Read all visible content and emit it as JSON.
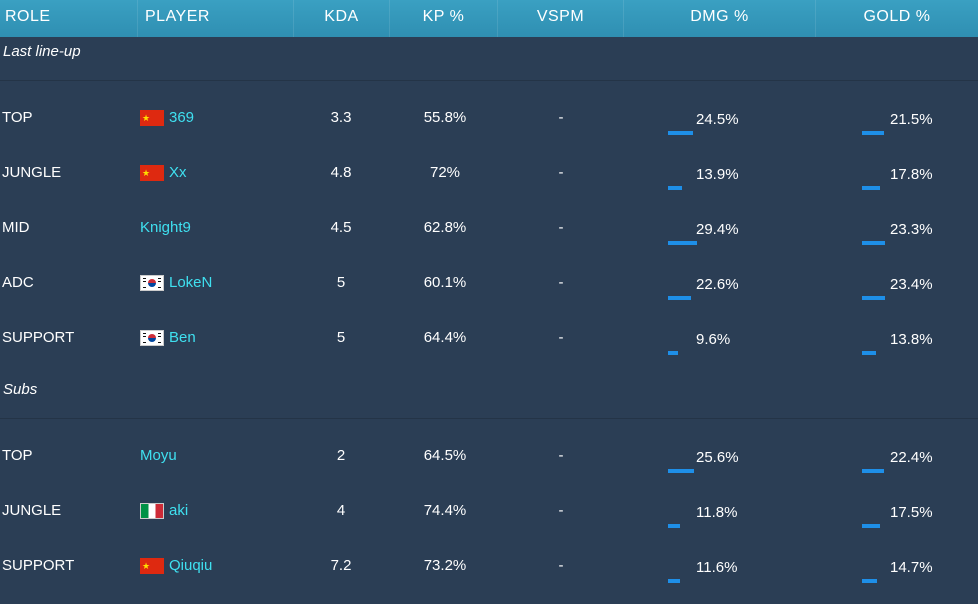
{
  "header": {
    "role": "ROLE",
    "player": "PLAYER",
    "kda": "KDA",
    "kp": "KP %",
    "vspm": "VSPM",
    "dmg": "DMG %",
    "gold": "GOLD %"
  },
  "sections": [
    {
      "title": "Last line-up",
      "rows": [
        {
          "role": "TOP",
          "flag": "cn",
          "player": "369",
          "kda": "3.3",
          "kp": "55.8%",
          "vspm": "-",
          "dmg": "24.5%",
          "dmg_value": 24.5,
          "gold": "21.5%",
          "gold_value": 21.5
        },
        {
          "role": "JUNGLE",
          "flag": "cn",
          "player": "Xx",
          "kda": "4.8",
          "kp": "72%",
          "vspm": "-",
          "dmg": "13.9%",
          "dmg_value": 13.9,
          "gold": "17.8%",
          "gold_value": 17.8
        },
        {
          "role": "MID",
          "flag": "",
          "player": "Knight9",
          "kda": "4.5",
          "kp": "62.8%",
          "vspm": "-",
          "dmg": "29.4%",
          "dmg_value": 29.4,
          "gold": "23.3%",
          "gold_value": 23.3
        },
        {
          "role": "ADC",
          "flag": "kr",
          "player": "LokeN",
          "kda": "5",
          "kp": "60.1%",
          "vspm": "-",
          "dmg": "22.6%",
          "dmg_value": 22.6,
          "gold": "23.4%",
          "gold_value": 23.4
        },
        {
          "role": "SUPPORT",
          "flag": "kr",
          "player": "Ben",
          "kda": "5",
          "kp": "64.4%",
          "vspm": "-",
          "dmg": "9.6%",
          "dmg_value": 9.6,
          "gold": "13.8%",
          "gold_value": 13.8
        }
      ]
    },
    {
      "title": "Subs",
      "rows": [
        {
          "role": "TOP",
          "flag": "",
          "player": "Moyu",
          "kda": "2",
          "kp": "64.5%",
          "vspm": "-",
          "dmg": "25.6%",
          "dmg_value": 25.6,
          "gold": "22.4%",
          "gold_value": 22.4
        },
        {
          "role": "JUNGLE",
          "flag": "it",
          "player": "aki",
          "kda": "4",
          "kp": "74.4%",
          "vspm": "-",
          "dmg": "11.8%",
          "dmg_value": 11.8,
          "gold": "17.5%",
          "gold_value": 17.5
        },
        {
          "role": "SUPPORT",
          "flag": "cn",
          "player": "Qiuqiu",
          "kda": "7.2",
          "kp": "73.2%",
          "vspm": "-",
          "dmg": "11.6%",
          "dmg_value": 11.6,
          "gold": "14.7%",
          "gold_value": 14.7
        }
      ]
    }
  ],
  "colors": {
    "background": "#2b3e55",
    "header": "#3298bb",
    "player_name": "#3fe0f0",
    "bar": "#1e8fe8"
  }
}
